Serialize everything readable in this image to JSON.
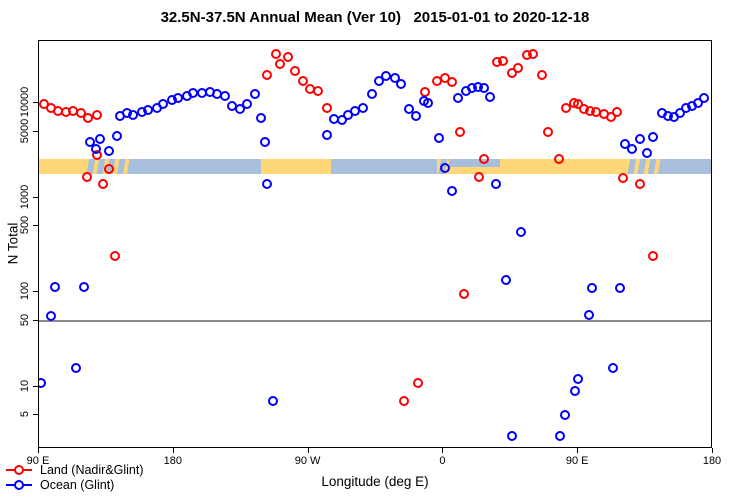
{
  "chart_data": {
    "type": "scatter",
    "title": "32.5N-37.5N Annual Mean (Ver 10)   2015-01-01 to 2020-12-18",
    "xlabel": "Longitude (deg E)",
    "ylabel": "N Total",
    "x_domain": [
      90,
      540
    ],
    "y_scale": "log",
    "y_domain": [
      2.2,
      45500
    ],
    "x_ticks": [
      {
        "pos": 90,
        "label": "90 E"
      },
      {
        "pos": 180,
        "label": "180"
      },
      {
        "pos": 270,
        "label": "90 W"
      },
      {
        "pos": 360,
        "label": "0"
      },
      {
        "pos": 450,
        "label": "90 E"
      },
      {
        "pos": 540,
        "label": "180"
      }
    ],
    "y_ticks": [
      10000,
      5000,
      1000,
      500,
      100,
      50,
      10,
      5
    ],
    "reference_line": {
      "y": 50,
      "color": "#8c8c8c"
    },
    "land_ocean_strip": {
      "description": "land/ocean map strip across 32.5N-37.5N",
      "y_top_N": 2600,
      "y_bottom_N": 1800,
      "land_color": "#ffd778",
      "ocean_color": "#a7bedd",
      "segments": [
        {
          "from": 90,
          "to": 121,
          "type": "land"
        },
        {
          "from": 121,
          "to": 150,
          "type": "mixed"
        },
        {
          "from": 150,
          "to": 238,
          "type": "ocean"
        },
        {
          "from": 238,
          "to": 285,
          "type": "land"
        },
        {
          "from": 285,
          "to": 356,
          "type": "ocean"
        },
        {
          "from": 356,
          "to": 364,
          "type": "mixed"
        },
        {
          "from": 364,
          "to": 398,
          "type": "med-split"
        },
        {
          "from": 398,
          "to": 482,
          "type": "land"
        },
        {
          "from": 482,
          "to": 507,
          "type": "mixed"
        },
        {
          "from": 507,
          "to": 540,
          "type": "ocean"
        }
      ]
    },
    "series": [
      {
        "name": "Land (Nadir&Glint)",
        "color": "#ff0000",
        "points": [
          [
            93,
            9800
          ],
          [
            98,
            8900
          ],
          [
            103,
            8200
          ],
          [
            108,
            8000
          ],
          [
            113,
            8200
          ],
          [
            118,
            7800
          ],
          [
            123,
            6900
          ],
          [
            129,
            7500
          ],
          [
            129,
            2800
          ],
          [
            137,
            2000
          ],
          [
            122,
            1650
          ],
          [
            133,
            1400
          ],
          [
            141,
            240
          ],
          [
            242,
            20000
          ],
          [
            248,
            33000
          ],
          [
            251,
            26000
          ],
          [
            256,
            31000
          ],
          [
            261,
            22000
          ],
          [
            266,
            17000
          ],
          [
            271,
            14000
          ],
          [
            276,
            13400
          ],
          [
            282,
            8900
          ],
          [
            348,
            13000
          ],
          [
            356,
            17000
          ],
          [
            361,
            18400
          ],
          [
            366,
            16700
          ],
          [
            371,
            4900
          ],
          [
            387,
            2600
          ],
          [
            384,
            1650
          ],
          [
            374,
            95
          ],
          [
            396,
            27000
          ],
          [
            400,
            28000
          ],
          [
            406,
            21000
          ],
          [
            410,
            23500
          ],
          [
            416,
            32000
          ],
          [
            420,
            33000
          ],
          [
            426,
            20000
          ],
          [
            430,
            5000
          ],
          [
            437,
            2550
          ],
          [
            442,
            8900
          ],
          [
            447,
            10000
          ],
          [
            450,
            9800
          ],
          [
            454,
            8700
          ],
          [
            458,
            8200
          ],
          [
            462,
            8000
          ],
          [
            467,
            7700
          ],
          [
            472,
            7100
          ],
          [
            476,
            8000
          ],
          [
            480,
            1600
          ],
          [
            491,
            1400
          ],
          [
            500,
            240
          ],
          [
            343,
            11
          ],
          [
            334,
            7
          ]
        ]
      },
      {
        "name": "Ocean (Glint)",
        "color": "#0000ff",
        "points": [
          [
            124,
            3900
          ],
          [
            128,
            3300
          ],
          [
            131,
            4200
          ],
          [
            137,
            3100
          ],
          [
            142,
            4500
          ],
          [
            144,
            7300
          ],
          [
            149,
            7800
          ],
          [
            153,
            7500
          ],
          [
            159,
            8000
          ],
          [
            163,
            8400
          ],
          [
            169,
            8900
          ],
          [
            173,
            9800
          ],
          [
            179,
            10800
          ],
          [
            183,
            11300
          ],
          [
            189,
            11900
          ],
          [
            193,
            12800
          ],
          [
            199,
            12800
          ],
          [
            204,
            13100
          ],
          [
            209,
            12500
          ],
          [
            214,
            11900
          ],
          [
            219,
            9300
          ],
          [
            224,
            8700
          ],
          [
            229,
            9800
          ],
          [
            234,
            12500
          ],
          [
            238,
            6900
          ],
          [
            241,
            3900
          ],
          [
            242,
            1400
          ],
          [
            282,
            4600
          ],
          [
            287,
            6800
          ],
          [
            292,
            6600
          ],
          [
            296,
            7500
          ],
          [
            301,
            8200
          ],
          [
            306,
            8900
          ],
          [
            312,
            12500
          ],
          [
            317,
            17000
          ],
          [
            322,
            19300
          ],
          [
            328,
            18400
          ],
          [
            332,
            16000
          ],
          [
            337,
            8700
          ],
          [
            342,
            7300
          ],
          [
            347,
            10500
          ],
          [
            350,
            10000
          ],
          [
            357,
            4300
          ],
          [
            361,
            2050
          ],
          [
            366,
            1170
          ],
          [
            370,
            11300
          ],
          [
            375,
            13400
          ],
          [
            379,
            14400
          ],
          [
            383,
            14800
          ],
          [
            387,
            14400
          ],
          [
            391,
            11600
          ],
          [
            395,
            1400
          ],
          [
            402,
            134
          ],
          [
            412,
            430
          ],
          [
            406,
            3
          ],
          [
            438,
            3
          ],
          [
            441,
            5
          ],
          [
            448,
            9
          ],
          [
            450,
            12
          ],
          [
            457,
            58
          ],
          [
            459,
            110
          ],
          [
            473,
            16
          ],
          [
            478,
            110
          ],
          [
            481,
            3700
          ],
          [
            486,
            3300
          ],
          [
            491,
            4200
          ],
          [
            496,
            3000
          ],
          [
            500,
            4400
          ],
          [
            506,
            7800
          ],
          [
            510,
            7300
          ],
          [
            514,
            7100
          ],
          [
            518,
            7800
          ],
          [
            522,
            8900
          ],
          [
            526,
            9300
          ],
          [
            530,
            10000
          ],
          [
            534,
            11300
          ],
          [
            101,
            115
          ],
          [
            120,
            115
          ],
          [
            98,
            56
          ],
          [
            115,
            16
          ],
          [
            91,
            11
          ],
          [
            246,
            7
          ]
        ]
      }
    ],
    "legend": {
      "position": "bottom-left",
      "entries": [
        "Land (Nadir&Glint)",
        "Ocean (Glint)"
      ]
    }
  }
}
